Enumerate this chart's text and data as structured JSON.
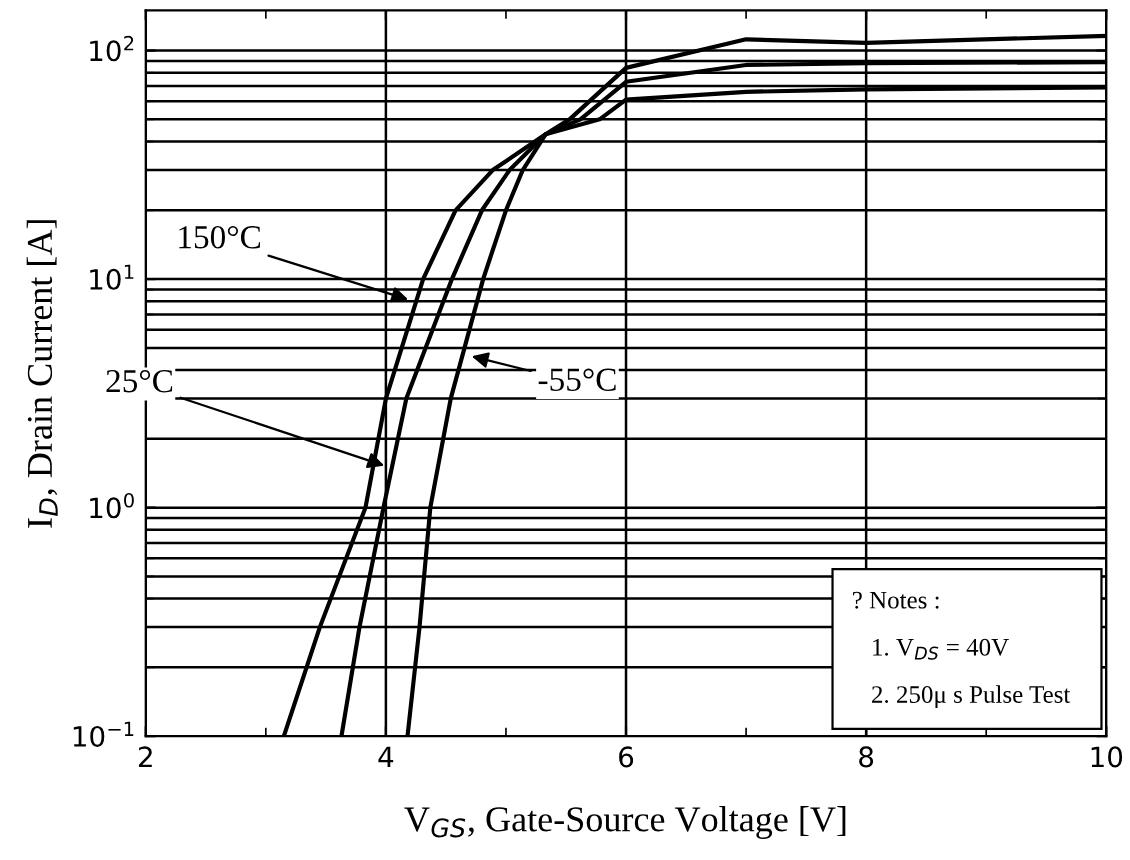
{
  "chart_data": {
    "type": "line",
    "xlabel": "V$_{GS}$, Gate-Source Voltage [V]",
    "ylabel": "I$_{D}$, Drain Current [A]",
    "log": "y",
    "grid": true,
    "legend": false,
    "marker": "none",
    "line_style": "solid",
    "xlim": [
      2,
      10
    ],
    "xticks": [
      2,
      4,
      6,
      8,
      10
    ],
    "ylim": [
      0.1,
      150
    ],
    "yticks": [
      {
        "value": 0.1,
        "label": "10$^{−1}$"
      },
      {
        "value": 1,
        "label": "10$^{0}$"
      },
      {
        "value": 10,
        "label": "10$^{1}$"
      },
      {
        "value": 100,
        "label": "10$^{2}$"
      }
    ],
    "series": [
      {
        "color": "#000000",
        "x": [
          3.15,
          3.45,
          3.83,
          4.0,
          4.31,
          4.58,
          4.89,
          5.33,
          5.78,
          6.0,
          7.0,
          8.0,
          10.0
        ],
        "values": [
          0.1,
          0.3,
          1,
          3,
          10,
          20,
          30,
          43,
          50,
          61,
          66,
          67.6,
          69
        ]
      },
      {
        "color": "#000000",
        "x": [
          3.63,
          3.78,
          3.98,
          4.17,
          4.55,
          4.8,
          5.03,
          5.33,
          5.62,
          6.0,
          7.0,
          8.0,
          10.0
        ],
        "values": [
          0.1,
          0.3,
          1,
          3,
          10,
          20,
          30,
          43,
          50,
          73,
          86.5,
          88,
          89
        ]
      },
      {
        "color": "#000000",
        "x": [
          4.18,
          4.28,
          4.37,
          4.54,
          4.81,
          5.0,
          5.14,
          5.33,
          5.53,
          6.0,
          7.0,
          8.0,
          10.0
        ],
        "values": [
          0.1,
          0.3,
          1,
          3,
          10,
          20,
          30,
          43,
          50,
          84,
          112,
          108,
          116
        ]
      }
    ],
    "annotations": [
      {
        "text": "150°C",
        "x": 4.23,
        "y": 8.0
      },
      {
        "text": "25°C",
        "x": 4.03,
        "y": 1.5
      },
      {
        "text": "-55°C",
        "x": 4.67,
        "y": 4.66
      },
      "? Notes :",
      "1. V$_{DS}$ = 40V",
      "2. 250μ s Pulse Test"
    ]
  }
}
